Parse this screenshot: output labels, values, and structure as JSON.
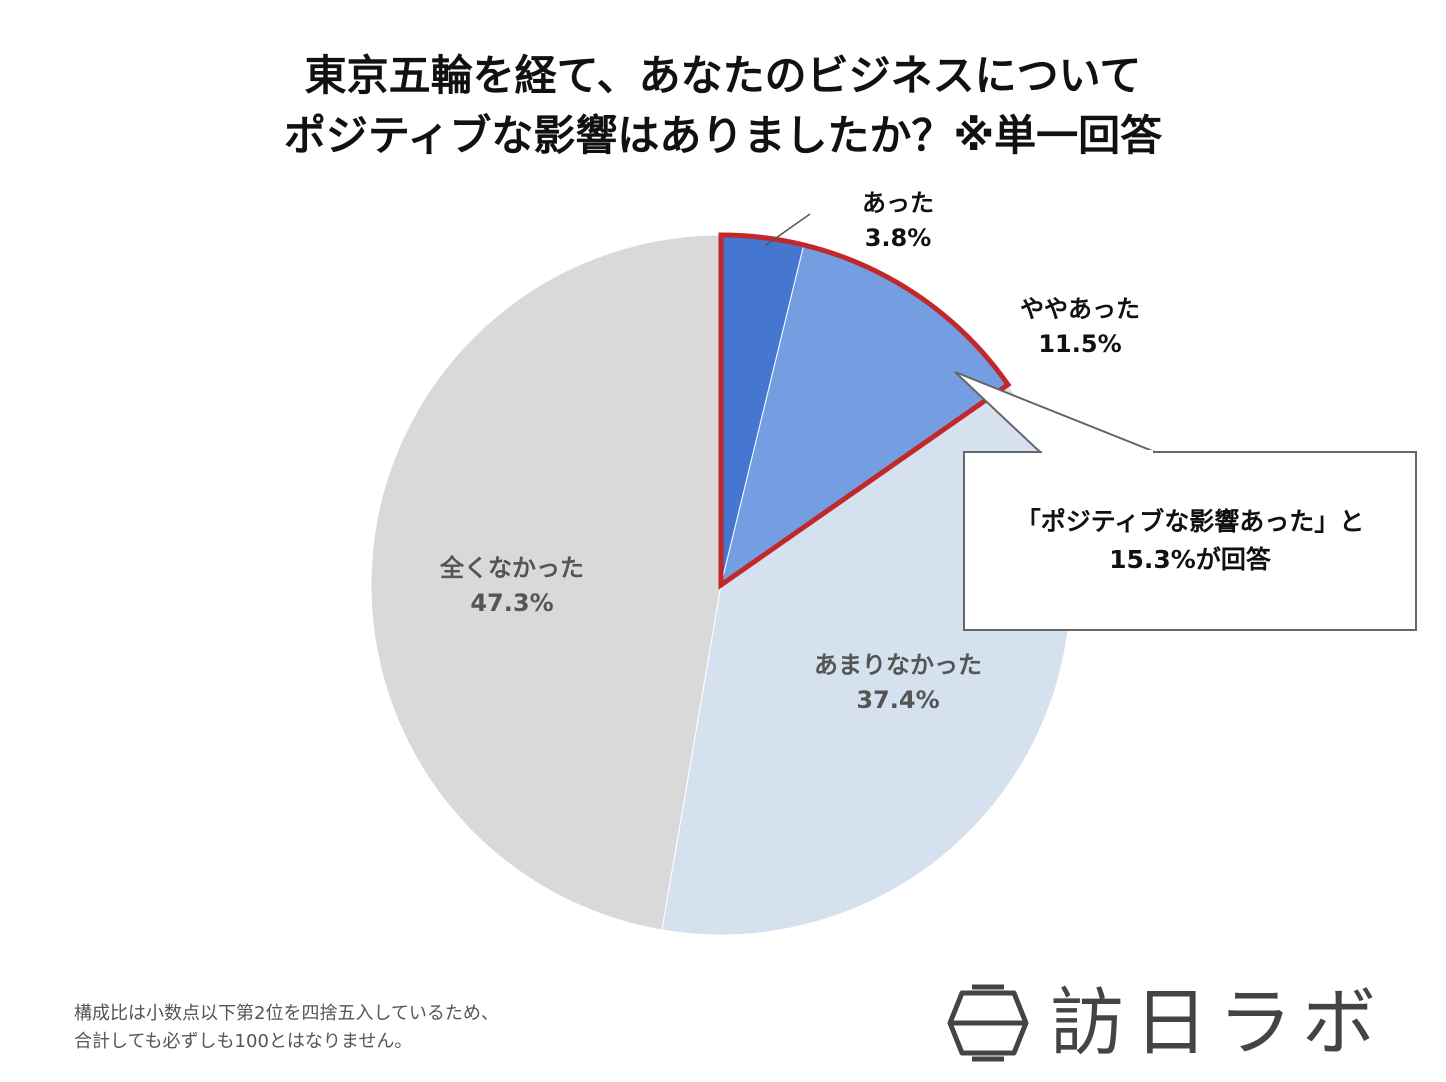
{
  "title_lines": [
    "東京五輪を経て、あなたのビジネスについて",
    "ポジティブな影響はありましたか？※単一回答"
  ],
  "chart_data": {
    "type": "pie",
    "start_angle": "12 o'clock, clockwise",
    "slices": [
      {
        "label": "あった",
        "value": 3.8,
        "display": "3.8%",
        "color": "#4677d0"
      },
      {
        "label": "ややあった",
        "value": 11.5,
        "display": "11.5%",
        "color": "#759de2"
      },
      {
        "label": "あまりなかった",
        "value": 37.4,
        "display": "37.4%",
        "color": "#d6e1f0"
      },
      {
        "label": "全くなかった",
        "value": 47.3,
        "display": "47.3%",
        "color": "#d9d9d9"
      }
    ],
    "highlight": {
      "slices": [
        "あった",
        "ややあった"
      ],
      "border_color": "#c0282a"
    }
  },
  "callout": {
    "line1": "「ポジティブな影響あった」と",
    "line2": "15.3%が回答"
  },
  "footnote": {
    "line1": "構成比は小数点以下第2位を四捨五入しているため、",
    "line2": "合計しても必ずしも100とはなりません。"
  },
  "logo": {
    "text": "訪日ラボ",
    "icon": "lantern-logo-icon"
  }
}
